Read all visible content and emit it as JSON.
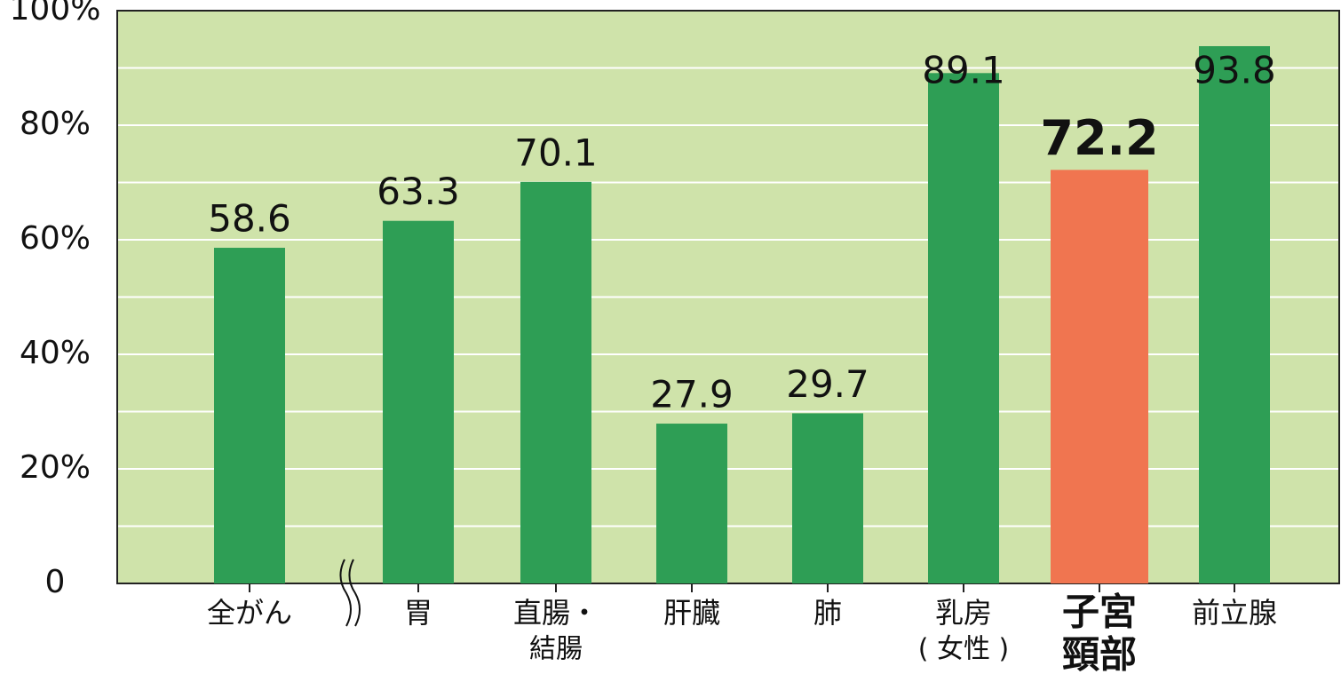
{
  "chart_data": {
    "type": "bar",
    "categories": [
      [
        "全がん"
      ],
      [
        "胃"
      ],
      [
        "直腸・",
        "結腸"
      ],
      [
        "肝臓"
      ],
      [
        "肺"
      ],
      [
        "乳房",
        "( 女性 )"
      ],
      [
        "子宮",
        "頸部"
      ],
      [
        "前立腺"
      ]
    ],
    "values": [
      58.6,
      63.3,
      70.1,
      27.9,
      29.7,
      89.1,
      72.2,
      93.8
    ],
    "colors": [
      "#2e9e55",
      "#2e9e55",
      "#2e9e55",
      "#2e9e55",
      "#2e9e55",
      "#2e9e55",
      "#f07550",
      "#2e9e55"
    ],
    "ylim": [
      0,
      100
    ],
    "yticks": [
      0,
      {
        "value": 20,
        "label": "20%"
      },
      {
        "value": 40,
        "label": "40%"
      },
      {
        "value": 60,
        "label": "60%"
      },
      {
        "value": 80,
        "label": "80%"
      },
      {
        "value": 100,
        "label": "100%"
      }
    ],
    "y_minor_ticks": [
      10,
      30,
      50,
      70,
      90
    ],
    "grid": true,
    "background": "#cfe3aa"
  }
}
